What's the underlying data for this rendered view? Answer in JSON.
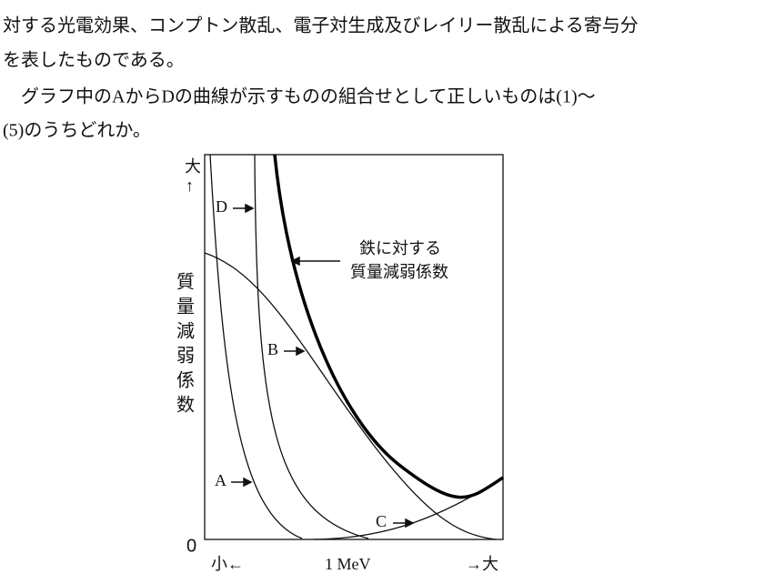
{
  "paragraphs": [
    "対する光電効果、コンプトン散乱、電子対生成及びレイリー散乱による寄与分",
    "を表したものである。",
    "グラフ中のAからDの曲線が示すものの組合せとして正しいものは(1)～",
    "(5)のうちどれか。"
  ],
  "figure": {
    "y_top": "大",
    "y_arrow": "↑",
    "y_label": [
      "質",
      "量",
      "減",
      "弱",
      "係",
      "数"
    ],
    "origin": "0",
    "x_left": "小←",
    "x_mid": "1 MeV",
    "x_right": "→大",
    "curve_labels": {
      "A": "A",
      "B": "B",
      "C": "C",
      "D": "D"
    },
    "iron_note": [
      "鉄に対する",
      "質量減弱係数"
    ]
  }
}
